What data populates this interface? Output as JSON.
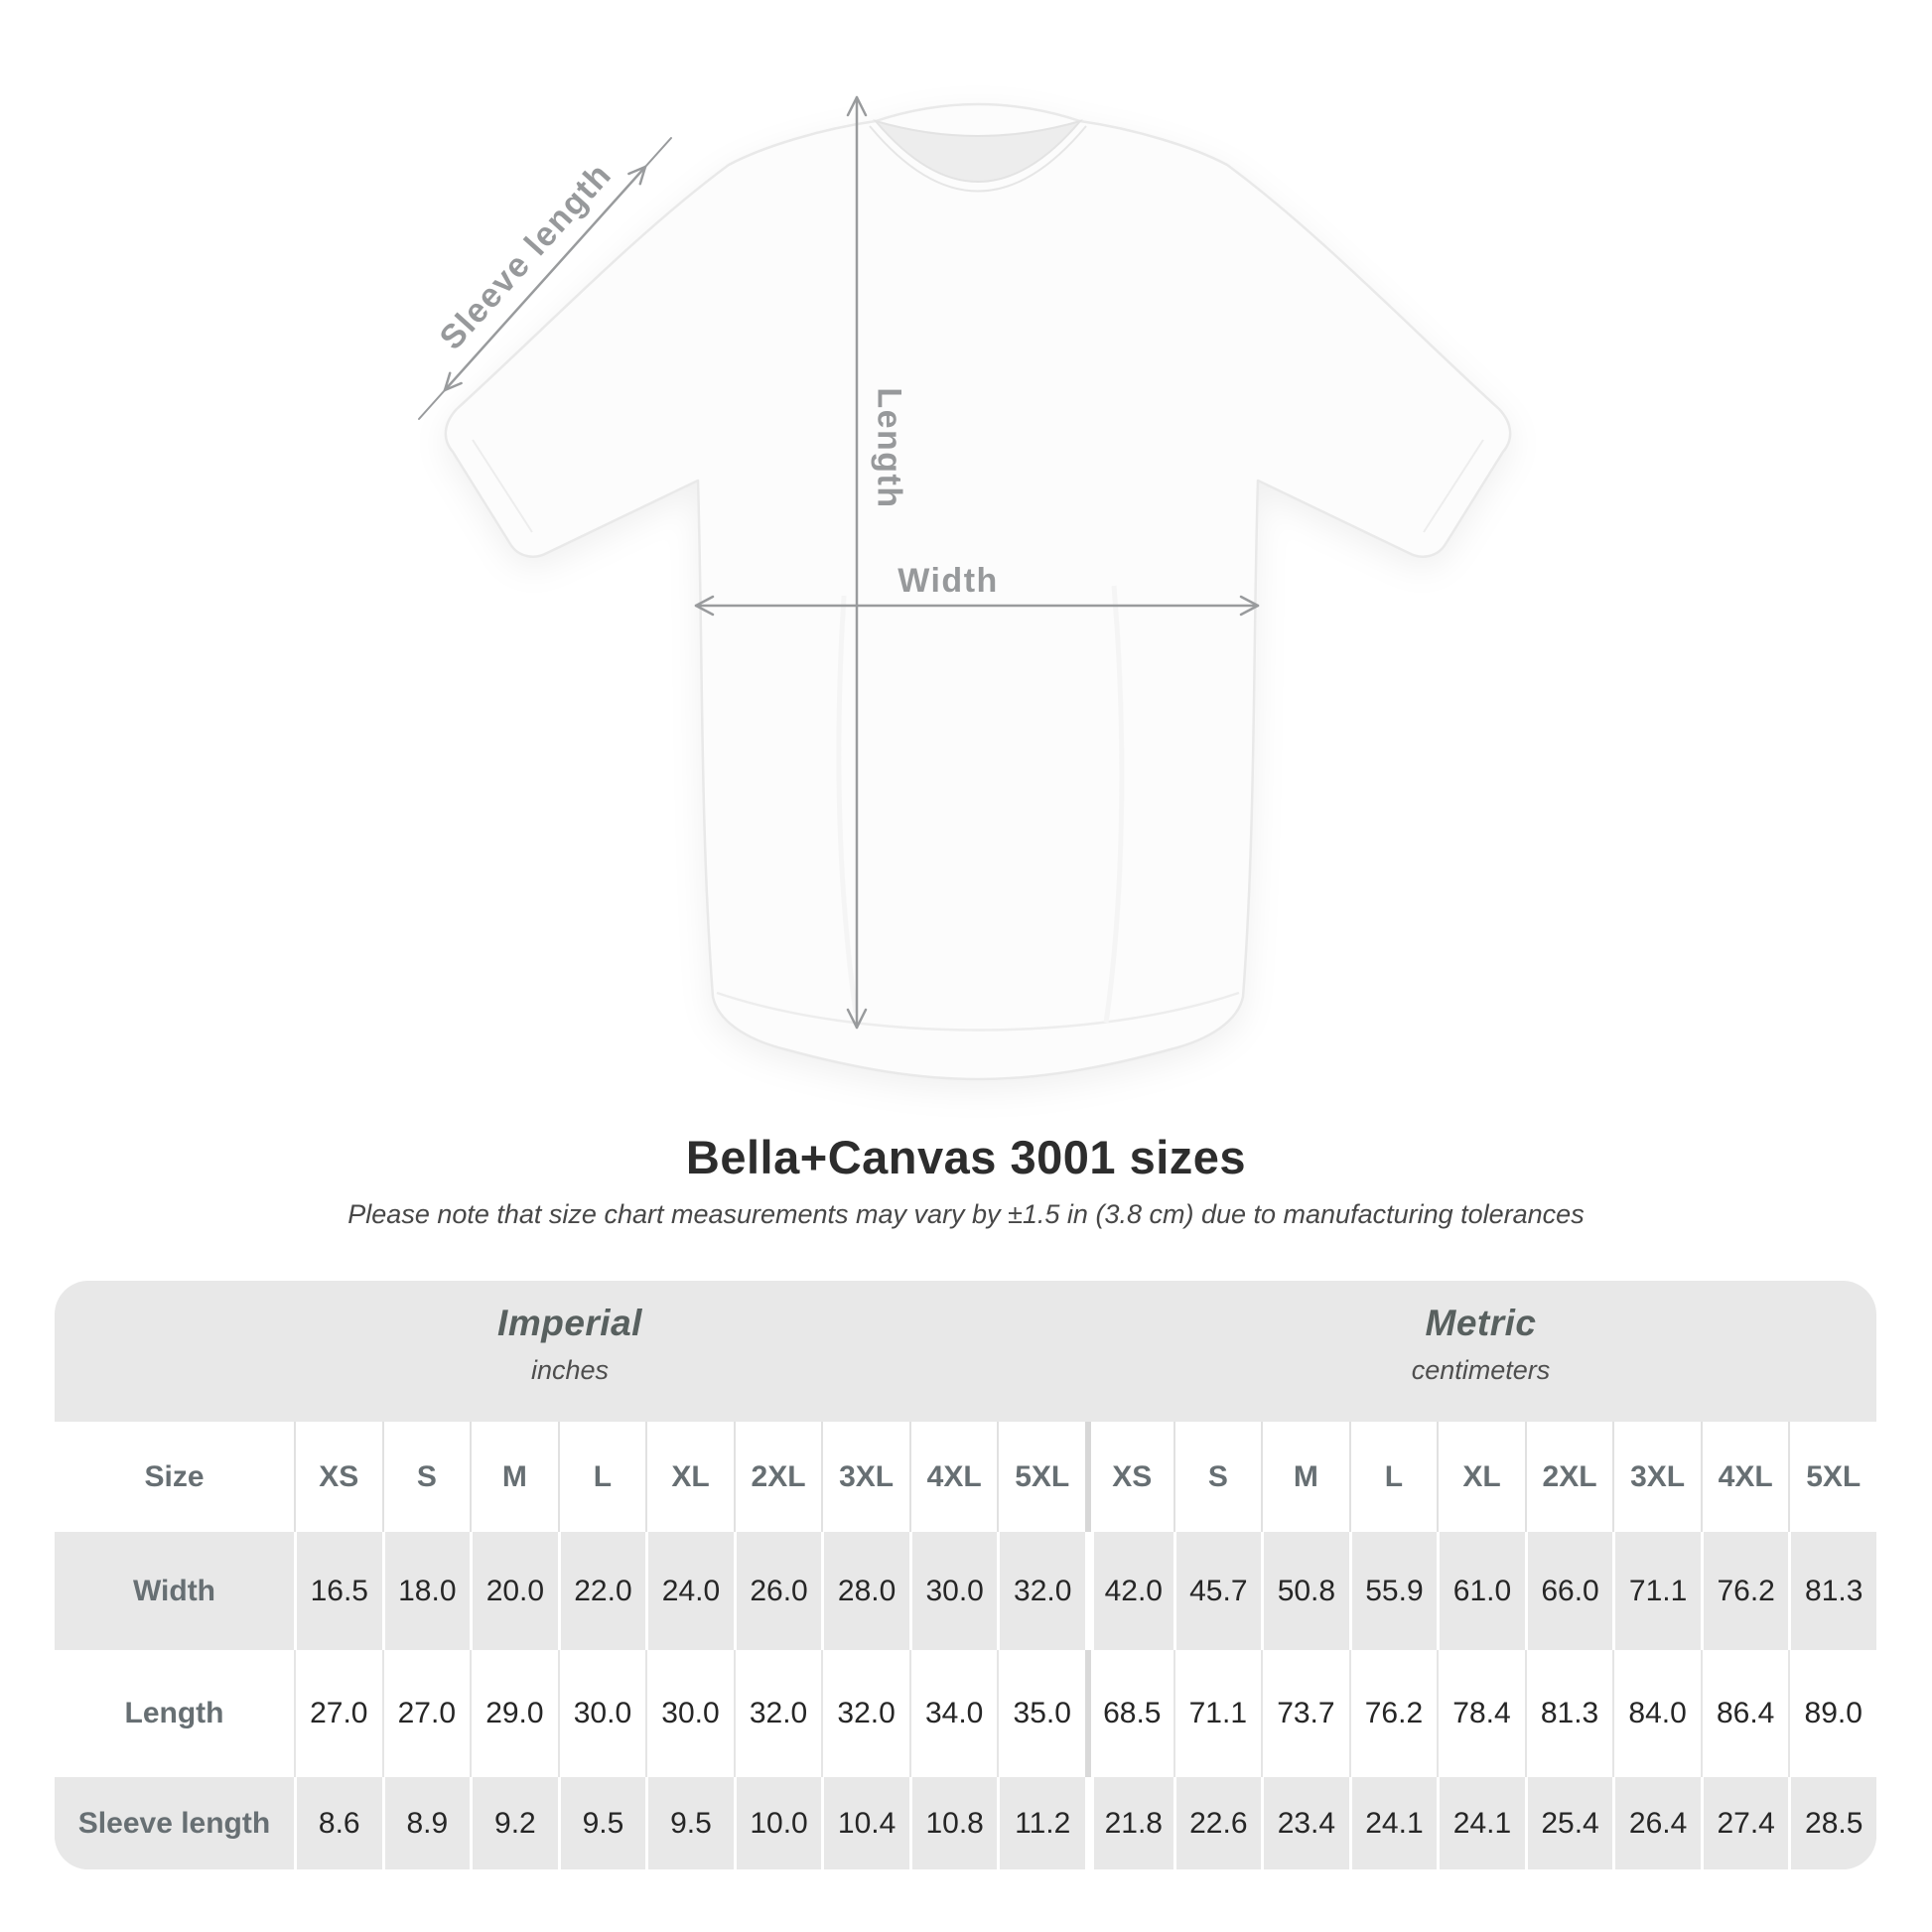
{
  "diagram": {
    "labels": {
      "sleeve": "Sleeve length",
      "length": "Length",
      "width": "Width"
    },
    "colors": {
      "arrow": "#999b9d",
      "label": "#97999b",
      "shirt_outline": "#e9e9e9",
      "shirt_fill": "#fcfcfc"
    }
  },
  "title": "Bella+Canvas 3001 sizes",
  "subtitle": "Please note that size chart measurements may vary by ±1.5 in (3.8 cm) due to manufacturing tolerances",
  "table": {
    "size_header": "Size",
    "groups": [
      {
        "label": "Imperial",
        "unit": "inches"
      },
      {
        "label": "Metric",
        "unit": "centimeters"
      }
    ],
    "sizes": [
      "XS",
      "S",
      "M",
      "L",
      "XL",
      "2XL",
      "3XL",
      "4XL",
      "5XL"
    ],
    "rows": [
      {
        "label": "Width",
        "imperial": [
          "16.5",
          "18.0",
          "20.0",
          "22.0",
          "24.0",
          "26.0",
          "28.0",
          "30.0",
          "32.0"
        ],
        "metric": [
          "42.0",
          "45.7",
          "50.8",
          "55.9",
          "61.0",
          "66.0",
          "71.1",
          "76.2",
          "81.3"
        ]
      },
      {
        "label": "Length",
        "imperial": [
          "27.0",
          "27.0",
          "29.0",
          "30.0",
          "30.0",
          "32.0",
          "32.0",
          "34.0",
          "35.0"
        ],
        "metric": [
          "68.5",
          "71.1",
          "73.7",
          "76.2",
          "78.4",
          "81.3",
          "84.0",
          "86.4",
          "89.0"
        ]
      },
      {
        "label": "Sleeve length",
        "imperial": [
          "8.6",
          "8.9",
          "9.2",
          "9.5",
          "9.5",
          "10.0",
          "10.4",
          "10.8",
          "11.2"
        ],
        "metric": [
          "21.8",
          "22.6",
          "23.4",
          "24.1",
          "24.1",
          "25.4",
          "26.4",
          "27.4",
          "28.5"
        ]
      }
    ],
    "colors": {
      "table_bg": "#e8e8e8",
      "header_text": "#676f73",
      "value_text": "#262626"
    }
  },
  "chart_data": {
    "type": "table",
    "title": "Bella+Canvas 3001 sizes",
    "note": "Please note that size chart measurements may vary by ±1.5 in (3.8 cm) due to manufacturing tolerances",
    "column_groups": [
      "Imperial (inches)",
      "Metric (centimeters)"
    ],
    "columns": [
      "Size",
      "XS",
      "S",
      "M",
      "L",
      "XL",
      "2XL",
      "3XL",
      "4XL",
      "5XL",
      "XS",
      "S",
      "M",
      "L",
      "XL",
      "2XL",
      "3XL",
      "4XL",
      "5XL"
    ],
    "rows": [
      [
        "Width",
        16.5,
        18.0,
        20.0,
        22.0,
        24.0,
        26.0,
        28.0,
        30.0,
        32.0,
        42.0,
        45.7,
        50.8,
        55.9,
        61.0,
        66.0,
        71.1,
        76.2,
        81.3
      ],
      [
        "Length",
        27.0,
        27.0,
        29.0,
        30.0,
        30.0,
        32.0,
        32.0,
        34.0,
        35.0,
        68.5,
        71.1,
        73.7,
        76.2,
        78.4,
        81.3,
        84.0,
        86.4,
        89.0
      ],
      [
        "Sleeve length",
        8.6,
        8.9,
        9.2,
        9.5,
        9.5,
        10.0,
        10.4,
        10.8,
        11.2,
        21.8,
        22.6,
        23.4,
        24.1,
        24.1,
        25.4,
        26.4,
        27.4,
        28.5
      ]
    ]
  }
}
